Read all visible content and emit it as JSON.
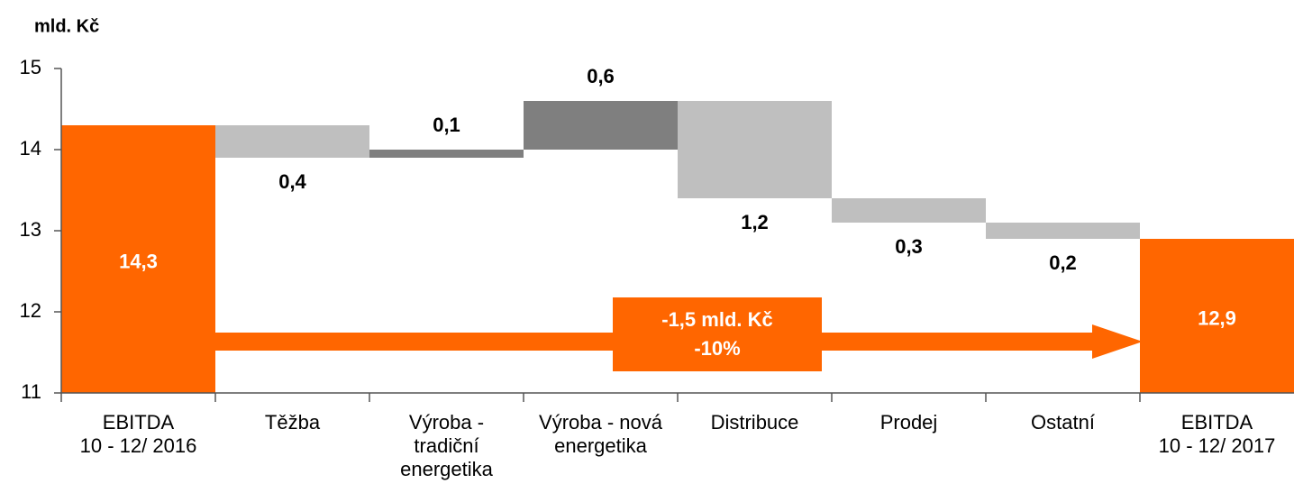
{
  "chart_data": {
    "type": "waterfall",
    "y_label": "mld. Kč",
    "categories": [
      [
        "EBITDA",
        "10 - 12/ 2016"
      ],
      [
        "Těžba"
      ],
      [
        "Výroba -",
        "tradiční",
        "energetika"
      ],
      [
        "Výroba - nová",
        "energetika"
      ],
      [
        "Distribuce"
      ],
      [
        "Prodej"
      ],
      [
        "Ostatní"
      ],
      [
        "EBITDA",
        "10 - 12/ 2017"
      ]
    ],
    "measure": [
      "absolute",
      "relative",
      "relative",
      "relative",
      "relative",
      "relative",
      "relative",
      "total"
    ],
    "values": [
      14.3,
      -0.4,
      0.1,
      0.6,
      -1.2,
      -0.3,
      -0.2,
      12.9
    ],
    "value_labels": [
      "14,3",
      "0,4",
      "0,1",
      "0,6",
      "1,2",
      "0,3",
      "0,2",
      "12,9"
    ],
    "colors": {
      "total": "#ff6600",
      "increase": "#7f7f7f",
      "decrease": "#bfbfbf"
    },
    "ylim": [
      11,
      15
    ],
    "yticks": [
      11,
      12,
      13,
      14,
      15
    ],
    "annotations": [
      "-1,5 mld. Kč",
      "-10%"
    ]
  }
}
